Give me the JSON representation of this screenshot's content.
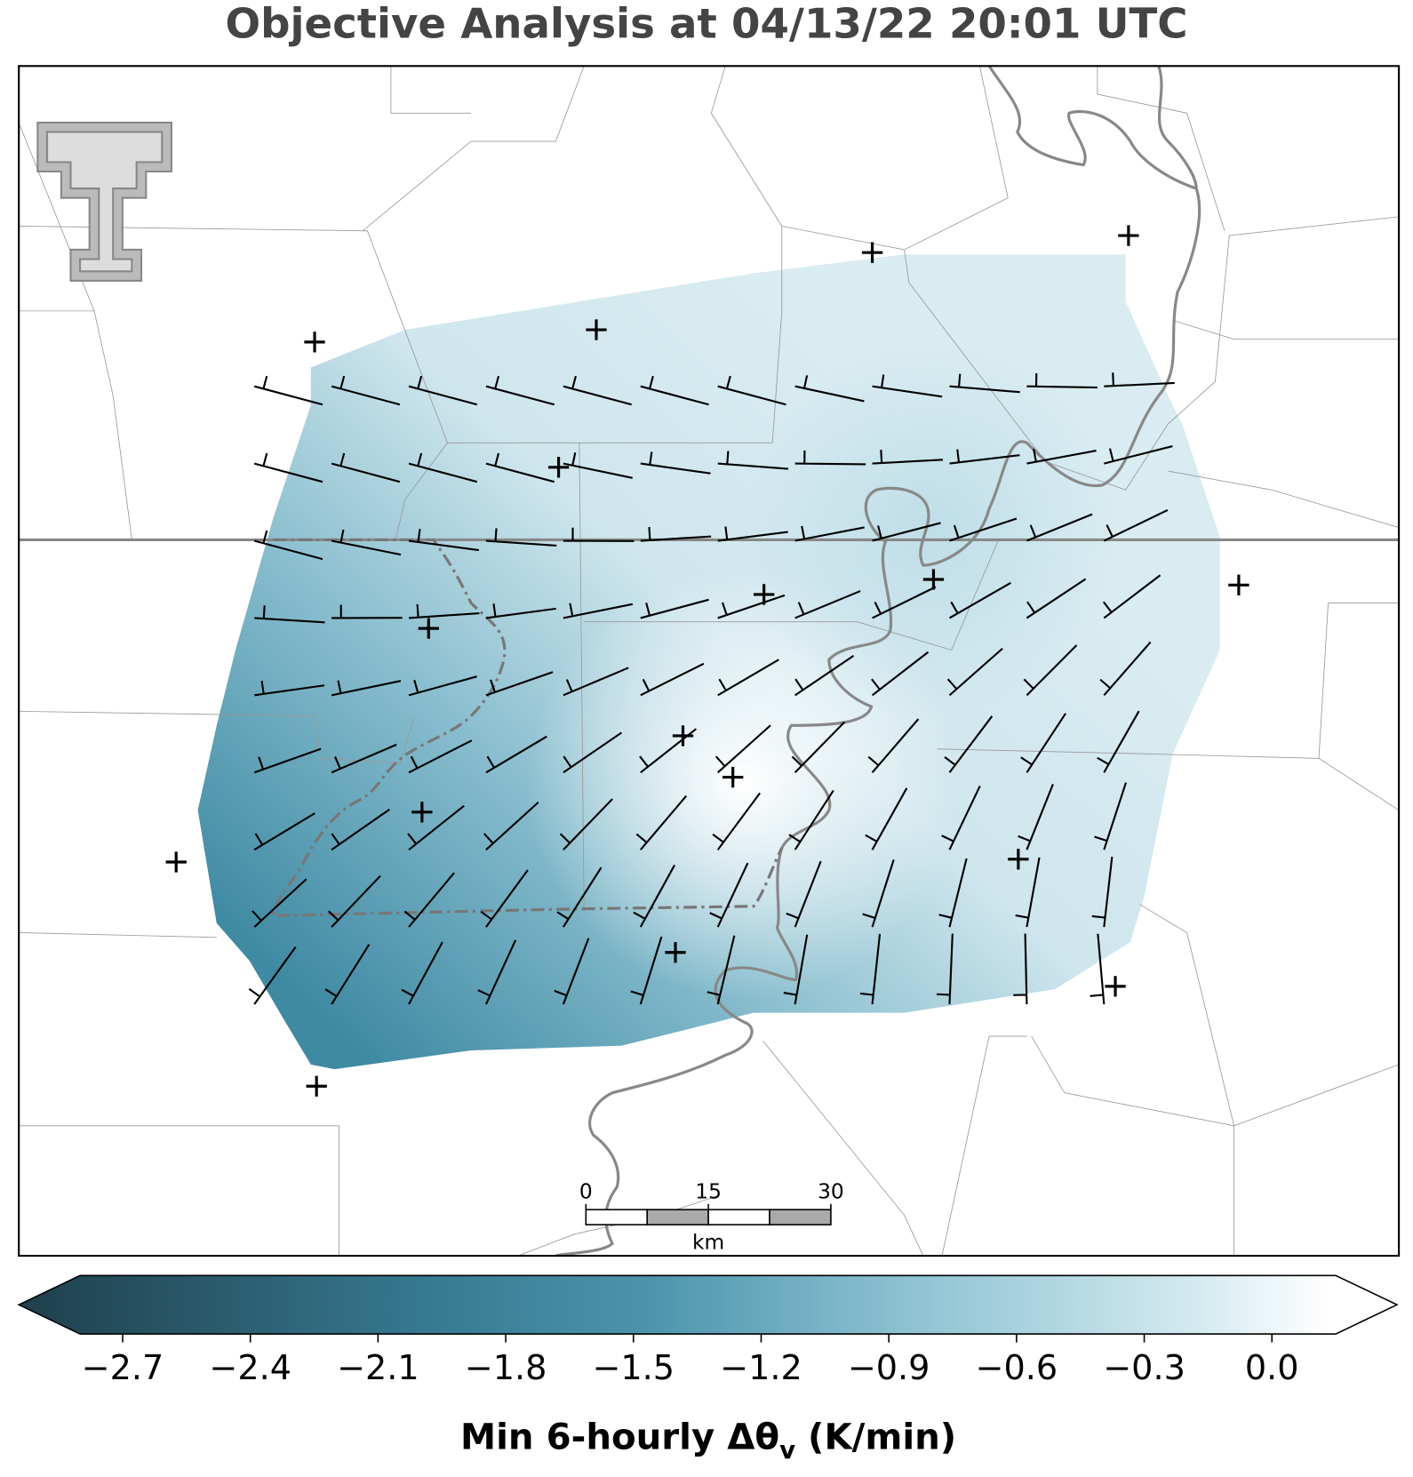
{
  "title": "Objective Analysis at 04/13/22 20:01 UTC",
  "map": {
    "scale_bar": {
      "ticks": [
        0,
        15,
        30
      ],
      "unit": "km"
    }
  },
  "colorbar": {
    "range": [
      -2.8,
      0.15
    ],
    "ticks": [
      {
        "value": -2.7,
        "label": "−2.7"
      },
      {
        "value": -2.4,
        "label": "−2.4"
      },
      {
        "value": -2.1,
        "label": "−2.1"
      },
      {
        "value": -1.8,
        "label": "−1.8"
      },
      {
        "value": -1.5,
        "label": "−1.5"
      },
      {
        "value": -1.2,
        "label": "−1.2"
      },
      {
        "value": -0.9,
        "label": "−0.9"
      },
      {
        "value": -0.6,
        "label": "−0.6"
      },
      {
        "value": -0.3,
        "label": "−0.3"
      },
      {
        "value": 0,
        "label": "0.0"
      }
    ],
    "label": "Min 6-hourly Δθ",
    "label_subscript": "v",
    "label_suffix": " (K/min)"
  }
}
